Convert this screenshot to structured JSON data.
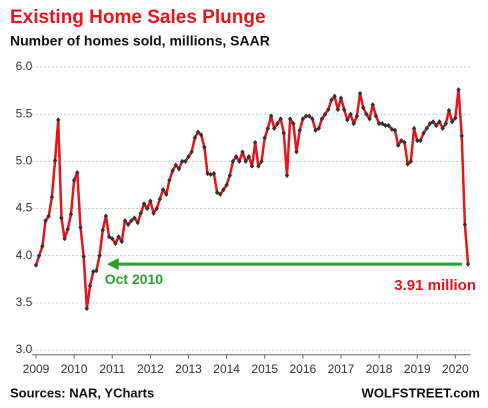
{
  "chart_data": {
    "type": "line",
    "title": "Existing Home Sales Plunge",
    "subtitle": "Number of homes sold, millions, SAAR",
    "annotations": [
      "Oct 2010",
      "3.91 million"
    ],
    "source": "Sources: NAR, YCharts",
    "credit": "WOLFSTREET.com",
    "x": [
      2009,
      2009.083,
      2009.167,
      2009.25,
      2009.333,
      2009.417,
      2009.5,
      2009.583,
      2009.667,
      2009.75,
      2009.833,
      2009.917,
      2010,
      2010.083,
      2010.167,
      2010.25,
      2010.333,
      2010.417,
      2010.5,
      2010.583,
      2010.667,
      2010.75,
      2010.833,
      2010.917,
      2011,
      2011.083,
      2011.167,
      2011.25,
      2011.333,
      2011.417,
      2011.5,
      2011.583,
      2011.667,
      2011.75,
      2011.833,
      2011.917,
      2012,
      2012.083,
      2012.167,
      2012.25,
      2012.333,
      2012.417,
      2012.5,
      2012.583,
      2012.667,
      2012.75,
      2012.833,
      2012.917,
      2013,
      2013.083,
      2013.167,
      2013.25,
      2013.333,
      2013.417,
      2013.5,
      2013.583,
      2013.667,
      2013.75,
      2013.833,
      2013.917,
      2014,
      2014.083,
      2014.167,
      2014.25,
      2014.333,
      2014.417,
      2014.5,
      2014.583,
      2014.667,
      2014.75,
      2014.833,
      2014.917,
      2015,
      2015.083,
      2015.167,
      2015.25,
      2015.333,
      2015.417,
      2015.5,
      2015.583,
      2015.667,
      2015.75,
      2015.833,
      2015.917,
      2016,
      2016.083,
      2016.167,
      2016.25,
      2016.333,
      2016.417,
      2016.5,
      2016.583,
      2016.667,
      2016.75,
      2016.833,
      2016.917,
      2017,
      2017.083,
      2017.167,
      2017.25,
      2017.333,
      2017.417,
      2017.5,
      2017.583,
      2017.667,
      2017.75,
      2017.833,
      2017.917,
      2018,
      2018.083,
      2018.167,
      2018.25,
      2018.333,
      2018.417,
      2018.5,
      2018.583,
      2018.667,
      2018.75,
      2018.833,
      2018.917,
      2019,
      2019.083,
      2019.167,
      2019.25,
      2019.333,
      2019.417,
      2019.5,
      2019.583,
      2019.667,
      2019.75,
      2019.833,
      2019.917,
      2020,
      2020.083,
      2020.167,
      2020.25,
      2020.333
    ],
    "series": [
      {
        "color": "#e8141b",
        "marker_color": "#333333",
        "values": [
          3.9,
          4.0,
          4.1,
          4.37,
          4.42,
          4.62,
          5.01,
          5.44,
          4.4,
          4.18,
          4.28,
          4.44,
          4.8,
          4.88,
          4.3,
          3.99,
          3.44,
          3.68,
          3.83,
          3.84,
          4.0,
          4.27,
          4.42,
          4.2,
          4.18,
          4.13,
          4.2,
          4.15,
          4.37,
          4.33,
          4.37,
          4.4,
          4.35,
          4.45,
          4.55,
          4.5,
          4.58,
          4.45,
          4.5,
          4.6,
          4.7,
          4.65,
          4.8,
          4.9,
          4.96,
          4.92,
          5.0,
          5.0,
          5.05,
          5.1,
          5.25,
          5.31,
          5.28,
          5.15,
          4.87,
          4.86,
          4.87,
          4.67,
          4.65,
          4.7,
          4.75,
          4.85,
          5.0,
          5.05,
          5.0,
          5.1,
          5.0,
          5.05,
          4.95,
          5.2,
          4.95,
          5.0,
          5.25,
          5.35,
          5.48,
          5.35,
          5.4,
          5.45,
          5.3,
          4.85,
          5.45,
          5.4,
          5.1,
          5.33,
          5.45,
          5.48,
          5.48,
          5.45,
          5.33,
          5.35,
          5.45,
          5.5,
          5.55,
          5.65,
          5.69,
          5.55,
          5.67,
          5.55,
          5.44,
          5.5,
          5.4,
          5.48,
          5.72,
          5.57,
          5.5,
          5.45,
          5.6,
          5.48,
          5.4,
          5.4,
          5.38,
          5.38,
          5.34,
          5.33,
          5.17,
          5.22,
          5.2,
          4.97,
          5.0,
          5.35,
          5.22,
          5.22,
          5.3,
          5.35,
          5.4,
          5.42,
          5.38,
          5.42,
          5.35,
          5.4,
          5.54,
          5.42,
          5.46,
          5.76,
          5.27,
          4.33,
          3.91
        ]
      }
    ],
    "xlim": [
      2008.9,
      2020.4
    ],
    "xticks": [
      2009,
      2010,
      2011,
      2012,
      2013,
      2014,
      2015,
      2016,
      2017,
      2018,
      2019,
      2020
    ],
    "ylim": [
      2.95,
      6.1
    ],
    "yticks": [
      {
        "value": 3,
        "label": "3.0"
      },
      {
        "value": 3.5,
        "label": "3.5"
      },
      {
        "value": 4,
        "label": "4.0"
      },
      {
        "value": 4.5,
        "label": "4.5"
      },
      {
        "value": 5,
        "label": "5.0"
      },
      {
        "value": 5.5,
        "label": "5.5"
      },
      {
        "value": 6,
        "label": "6.0"
      }
    ],
    "grid": true
  }
}
